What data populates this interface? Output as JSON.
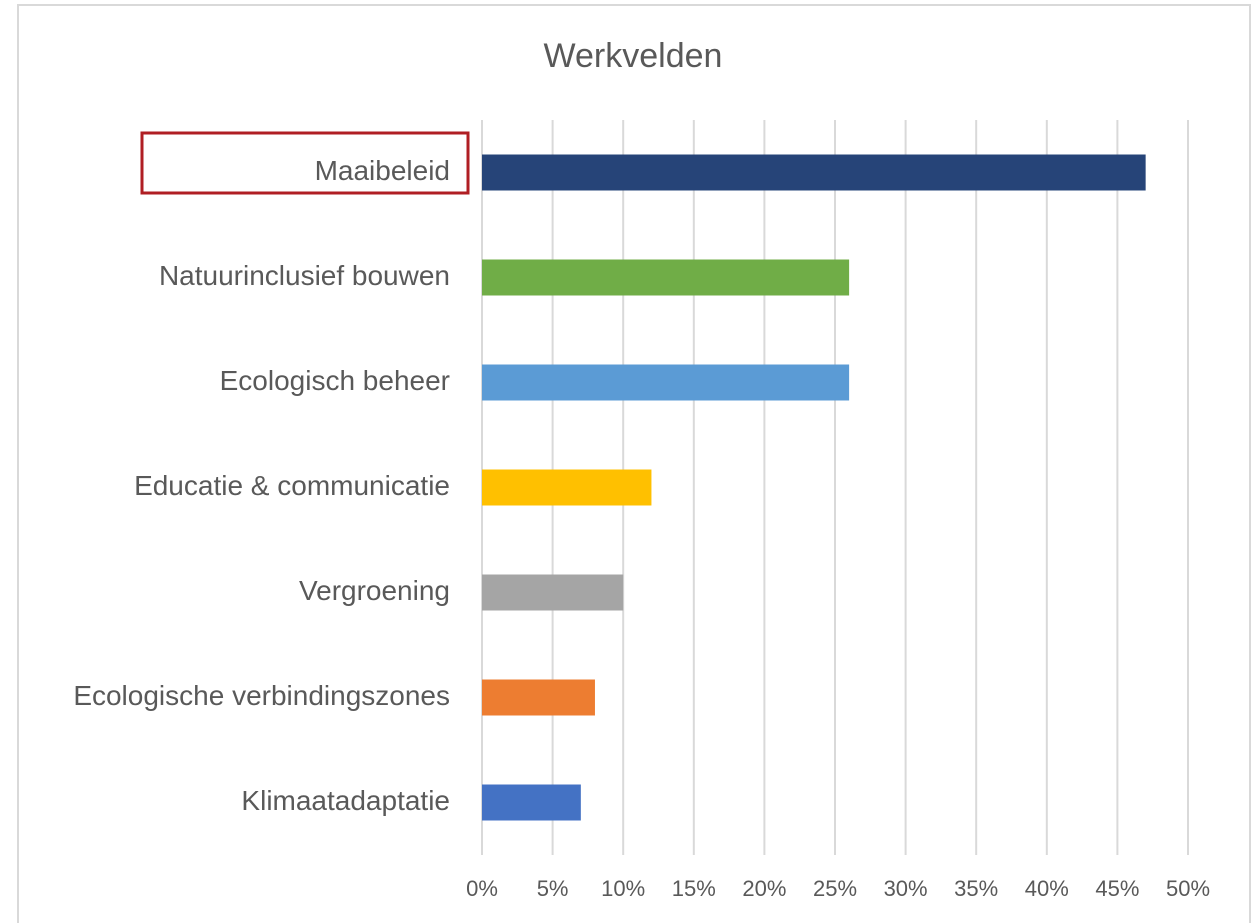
{
  "chart_data": {
    "type": "bar",
    "orientation": "horizontal",
    "title": "Werkvelden",
    "categories": [
      "Maaibeleid",
      "Natuurinclusief bouwen",
      "Ecologisch beheer",
      "Educatie & communicatie",
      "Vergroening",
      "Ecologische verbindingszones",
      "Klimaatadaptatie"
    ],
    "values": [
      47,
      26,
      26,
      12,
      10,
      8,
      7
    ],
    "colors": [
      "#264478",
      "#70ad47",
      "#5b9bd5",
      "#ffc000",
      "#a5a5a5",
      "#ed7d31",
      "#4472c4"
    ],
    "xlim": [
      0,
      50
    ],
    "xticks": [
      {
        "value": 0,
        "label": "0%"
      },
      {
        "value": 5,
        "label": "5%"
      },
      {
        "value": 10,
        "label": "10%"
      },
      {
        "value": 15,
        "label": "15%"
      },
      {
        "value": 20,
        "label": "20%"
      },
      {
        "value": 25,
        "label": "25%"
      },
      {
        "value": 30,
        "label": "30%"
      },
      {
        "value": 35,
        "label": "35%"
      },
      {
        "value": 40,
        "label": "40%"
      },
      {
        "value": 45,
        "label": "45%"
      },
      {
        "value": 50,
        "label": "50%"
      }
    ],
    "grid": true
  }
}
